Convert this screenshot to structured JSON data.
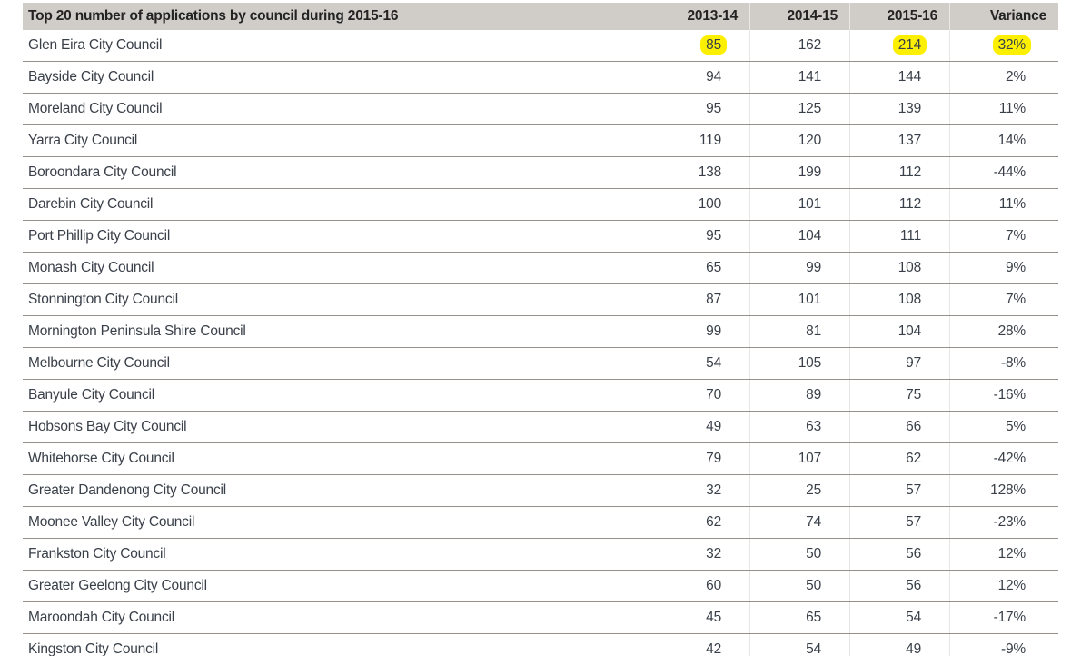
{
  "table": {
    "title": "Top 20 number of applications by council during 2015-16",
    "columns": [
      "2013-14",
      "2014-15",
      "2015-16",
      "Variance"
    ],
    "rows": [
      {
        "council": "Glen Eira City Council",
        "values": [
          "85",
          "162",
          "214",
          "32%"
        ],
        "highlight": [
          0,
          2,
          3
        ]
      },
      {
        "council": "Bayside City Council",
        "values": [
          "94",
          "141",
          "144",
          "2%"
        ],
        "highlight": []
      },
      {
        "council": "Moreland City Council",
        "values": [
          "95",
          "125",
          "139",
          "11%"
        ],
        "highlight": []
      },
      {
        "council": "Yarra City Council",
        "values": [
          "119",
          "120",
          "137",
          "14%"
        ],
        "highlight": []
      },
      {
        "council": "Boroondara City Council",
        "values": [
          "138",
          "199",
          "112",
          "-44%"
        ],
        "highlight": []
      },
      {
        "council": "Darebin City Council",
        "values": [
          "100",
          "101",
          "112",
          "11%"
        ],
        "highlight": []
      },
      {
        "council": "Port Phillip City Council",
        "values": [
          "95",
          "104",
          "111",
          "7%"
        ],
        "highlight": []
      },
      {
        "council": "Monash City Council",
        "values": [
          "65",
          "99",
          "108",
          "9%"
        ],
        "highlight": []
      },
      {
        "council": "Stonnington City Council",
        "values": [
          "87",
          "101",
          "108",
          "7%"
        ],
        "highlight": []
      },
      {
        "council": "Mornington Peninsula Shire Council",
        "values": [
          "99",
          "81",
          "104",
          "28%"
        ],
        "highlight": []
      },
      {
        "council": "Melbourne City Council",
        "values": [
          "54",
          "105",
          "97",
          "-8%"
        ],
        "highlight": []
      },
      {
        "council": "Banyule City Council",
        "values": [
          "70",
          "89",
          "75",
          "-16%"
        ],
        "highlight": []
      },
      {
        "council": "Hobsons Bay City Council",
        "values": [
          "49",
          "63",
          "66",
          "5%"
        ],
        "highlight": []
      },
      {
        "council": "Whitehorse City Council",
        "values": [
          "79",
          "107",
          "62",
          "-42%"
        ],
        "highlight": []
      },
      {
        "council": "Greater Dandenong City Council",
        "values": [
          "32",
          "25",
          "57",
          "128%"
        ],
        "highlight": []
      },
      {
        "council": "Moonee Valley City Council",
        "values": [
          "62",
          "74",
          "57",
          "-23%"
        ],
        "highlight": []
      },
      {
        "council": "Frankston City Council",
        "values": [
          "32",
          "50",
          "56",
          "12%"
        ],
        "highlight": []
      },
      {
        "council": "Greater Geelong City Council",
        "values": [
          "60",
          "50",
          "56",
          "12%"
        ],
        "highlight": []
      },
      {
        "council": "Maroondah City Council",
        "values": [
          "45",
          "65",
          "54",
          "-17%"
        ],
        "highlight": []
      },
      {
        "council": "Kingston City Council",
        "values": [
          "42",
          "54",
          "49",
          "-9%"
        ],
        "highlight": []
      }
    ]
  },
  "colors": {
    "header_background": "#d0cdc8",
    "highlight": "#fcf000",
    "body_text": "#3a4049",
    "row_separator": "#95908c",
    "bottom_border": "#8a817a"
  }
}
